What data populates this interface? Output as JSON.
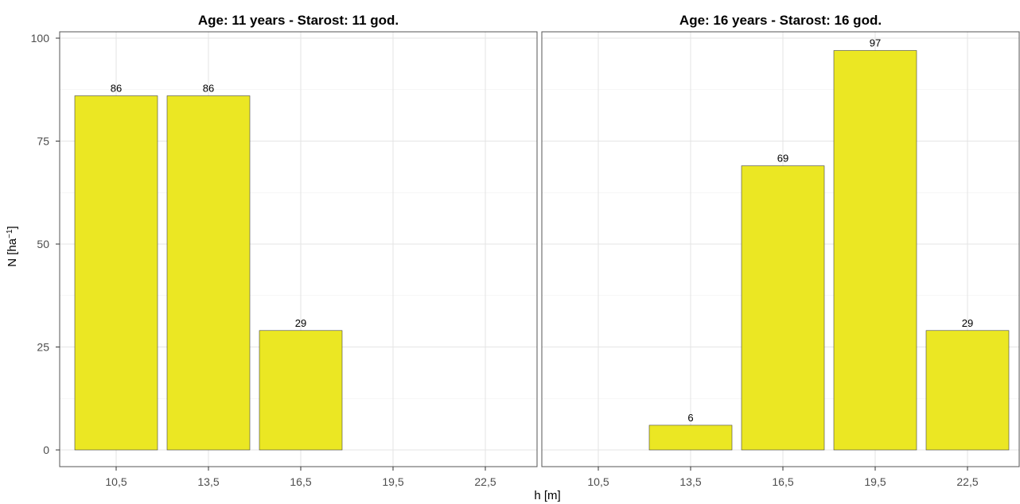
{
  "chart_data": {
    "type": "bar",
    "categories": [
      "10,5",
      "13,5",
      "16,5",
      "19,5",
      "22,5"
    ],
    "ylim": [
      0,
      100
    ],
    "yticks": [
      0,
      25,
      50,
      75,
      100
    ],
    "xlabel": "h [m]",
    "ylabel": {
      "main": "N [ha",
      "sup": "−1",
      "end": "]"
    },
    "bar_color": "#EBE723",
    "grid": true,
    "panels": [
      {
        "title": "Age: 11 years - Starost: 11 god.",
        "values": [
          86,
          86,
          29,
          null,
          null
        ]
      },
      {
        "title": "Age: 16 years - Starost: 16 god.",
        "values": [
          null,
          6,
          69,
          97,
          29
        ]
      }
    ]
  }
}
